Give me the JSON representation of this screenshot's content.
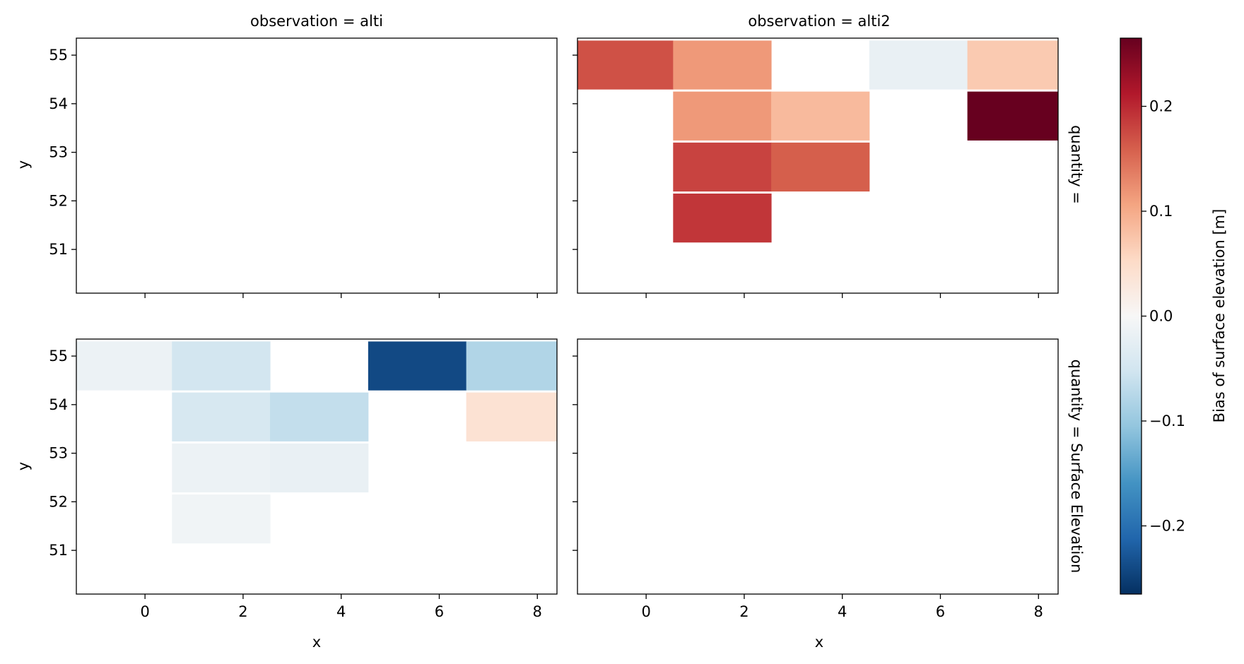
{
  "chart_data": {
    "type": "heatmap",
    "xlabel": "x",
    "ylabel": "y",
    "xlim": [
      -1.4,
      8.4
    ],
    "ylim": [
      50.1,
      55.35
    ],
    "x_ticks": [
      "0",
      "2",
      "4",
      "6",
      "8"
    ],
    "y_ticks": [
      "51",
      "52",
      "53",
      "54",
      "55"
    ],
    "cell_width": 2,
    "cell_height": 1,
    "colorbar": {
      "label": "Bias of surface elevation [m]",
      "colormap": "RdBu_r",
      "vmin": -0.265,
      "vmax": 0.265,
      "ticks": [
        "−0.2",
        "−0.1",
        "0.0",
        "0.1",
        "0.2"
      ],
      "tick_values": [
        -0.2,
        -0.1,
        0.0,
        0.1,
        0.2
      ]
    },
    "col_titles": [
      "observation = alti",
      "observation = alti2"
    ],
    "row_titles": [
      "quantity =",
      "quantity = Surface Elevation"
    ],
    "panels": [
      {
        "row": 0,
        "col": 0,
        "cells": []
      },
      {
        "row": 0,
        "col": 1,
        "cells": [
          {
            "x": -0.45,
            "y": 54.8,
            "value": 0.17
          },
          {
            "x": 1.55,
            "y": 54.8,
            "value": 0.115
          },
          {
            "x": 5.55,
            "y": 54.8,
            "value": -0.02
          },
          {
            "x": 7.55,
            "y": 54.8,
            "value": 0.07
          },
          {
            "x": 1.55,
            "y": 53.75,
            "value": 0.115
          },
          {
            "x": 3.55,
            "y": 53.75,
            "value": 0.085
          },
          {
            "x": 7.55,
            "y": 53.75,
            "value": 0.265
          },
          {
            "x": 1.55,
            "y": 52.7,
            "value": 0.18
          },
          {
            "x": 3.55,
            "y": 52.7,
            "value": 0.16
          },
          {
            "x": 1.55,
            "y": 51.65,
            "value": 0.19
          }
        ]
      },
      {
        "row": 1,
        "col": 0,
        "cells": [
          {
            "x": -0.45,
            "y": 54.8,
            "value": -0.015
          },
          {
            "x": 1.55,
            "y": 54.8,
            "value": -0.05
          },
          {
            "x": 5.55,
            "y": 54.8,
            "value": -0.24
          },
          {
            "x": 7.55,
            "y": 54.8,
            "value": -0.08
          },
          {
            "x": 1.55,
            "y": 53.75,
            "value": -0.045
          },
          {
            "x": 3.55,
            "y": 53.75,
            "value": -0.065
          },
          {
            "x": 7.55,
            "y": 53.75,
            "value": 0.04
          },
          {
            "x": 1.55,
            "y": 52.7,
            "value": -0.015
          },
          {
            "x": 3.55,
            "y": 52.7,
            "value": -0.02
          },
          {
            "x": 1.55,
            "y": 51.65,
            "value": -0.01
          }
        ]
      },
      {
        "row": 1,
        "col": 1,
        "cells": []
      }
    ]
  }
}
